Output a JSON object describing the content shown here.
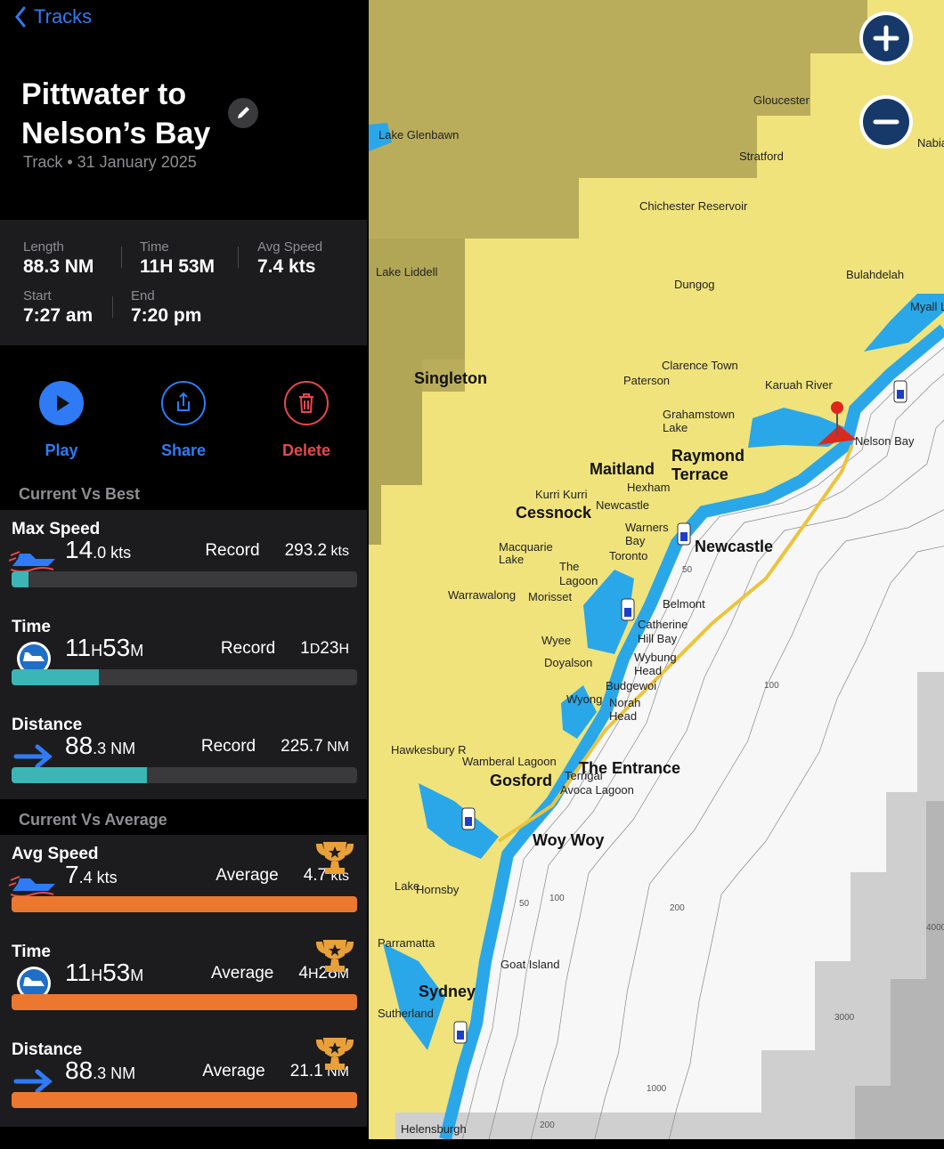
{
  "header": {
    "back": "Tracks",
    "title_lines": [
      "Pittwater to",
      "Nelson’s Bay"
    ],
    "subtitle": "Track • 31 January 2025"
  },
  "stats": [
    {
      "label": "Length",
      "value": "88.3 NM"
    },
    {
      "label": "Time",
      "value": "11H 53M"
    },
    {
      "label": "Avg Speed",
      "value": "7.4 kts"
    },
    {
      "label": "Start",
      "value": "7:27 am"
    },
    {
      "label": "End",
      "value": "7:20 pm"
    }
  ],
  "actions": [
    "Play",
    "Share",
    "Delete"
  ],
  "best": {
    "title": "Current Vs Best",
    "rows": [
      {
        "label": "Max Speed",
        "current": [
          "14",
          ".0 kts"
        ],
        "ref_label": "Record",
        "ref": [
          "293.2",
          " kts"
        ]
      },
      {
        "label": "Time",
        "current": [
          "11",
          "H",
          "53",
          "M"
        ],
        "ref_label": "Record",
        "ref": [
          "1",
          "D",
          "23",
          "H"
        ]
      },
      {
        "label": "Distance",
        "current": [
          "88",
          ".3 NM"
        ],
        "ref_label": "Record",
        "ref": [
          "225.7",
          " NM"
        ]
      }
    ]
  },
  "average": {
    "title": "Current Vs Average",
    "rows": [
      {
        "label": "Avg Speed",
        "current": [
          "7",
          ".4 kts"
        ],
        "ref_label": "Average",
        "ref": [
          "4.7",
          " kts"
        ]
      },
      {
        "label": "Time",
        "current": [
          "11",
          "H",
          "53",
          "M"
        ],
        "ref_label": "Average",
        "ref": [
          "4",
          "H",
          "28",
          "M"
        ]
      },
      {
        "label": "Distance",
        "current": [
          "88",
          ".3 NM"
        ],
        "ref_label": "Average",
        "ref": [
          "21.1",
          " NM"
        ]
      }
    ]
  },
  "map": {
    "labels": [
      "Gloucester",
      "Lake Glenbawn",
      "Stratford",
      "Chichester Reservoir",
      "Lake Liddell",
      "Dungog",
      "Bulahdelah",
      "Singleton",
      "Clarence Town",
      "Paterson",
      "Karuah River",
      "Grahamstown",
      "Lake",
      "Nelson Bay",
      "Maitland",
      "Raymond",
      "Terrace",
      "Hexham",
      "Kurri Kurri",
      "Cessnock",
      "Newcastle",
      "Warners",
      "Bay",
      "Macquarie",
      "Lake",
      "Toronto",
      "Newcastle",
      "The",
      "Lagoon",
      "Warrawalong",
      "Morisset",
      "Belmont",
      "Catherine",
      "Hill Bay",
      "Wyee",
      "Doyalson",
      "Wybung",
      "Head",
      "Budgewoi",
      "Norah",
      "Head",
      "Wyong",
      "Hawkesbury R",
      "Wamberal Lagoon",
      "Gosford",
      "The Entrance",
      "Terrigal",
      "Avoca Lagoon",
      "Woy Woy",
      "Hornsby",
      "Parramatta",
      "Goat Island",
      "Sydney",
      "Sutherland",
      "Helensburgh",
      "Myall L",
      "Nabia",
      "Lake"
    ],
    "depths": [
      "50",
      "50",
      "100",
      "100",
      "200",
      "1000",
      "3000",
      "4000",
      "200"
    ]
  }
}
